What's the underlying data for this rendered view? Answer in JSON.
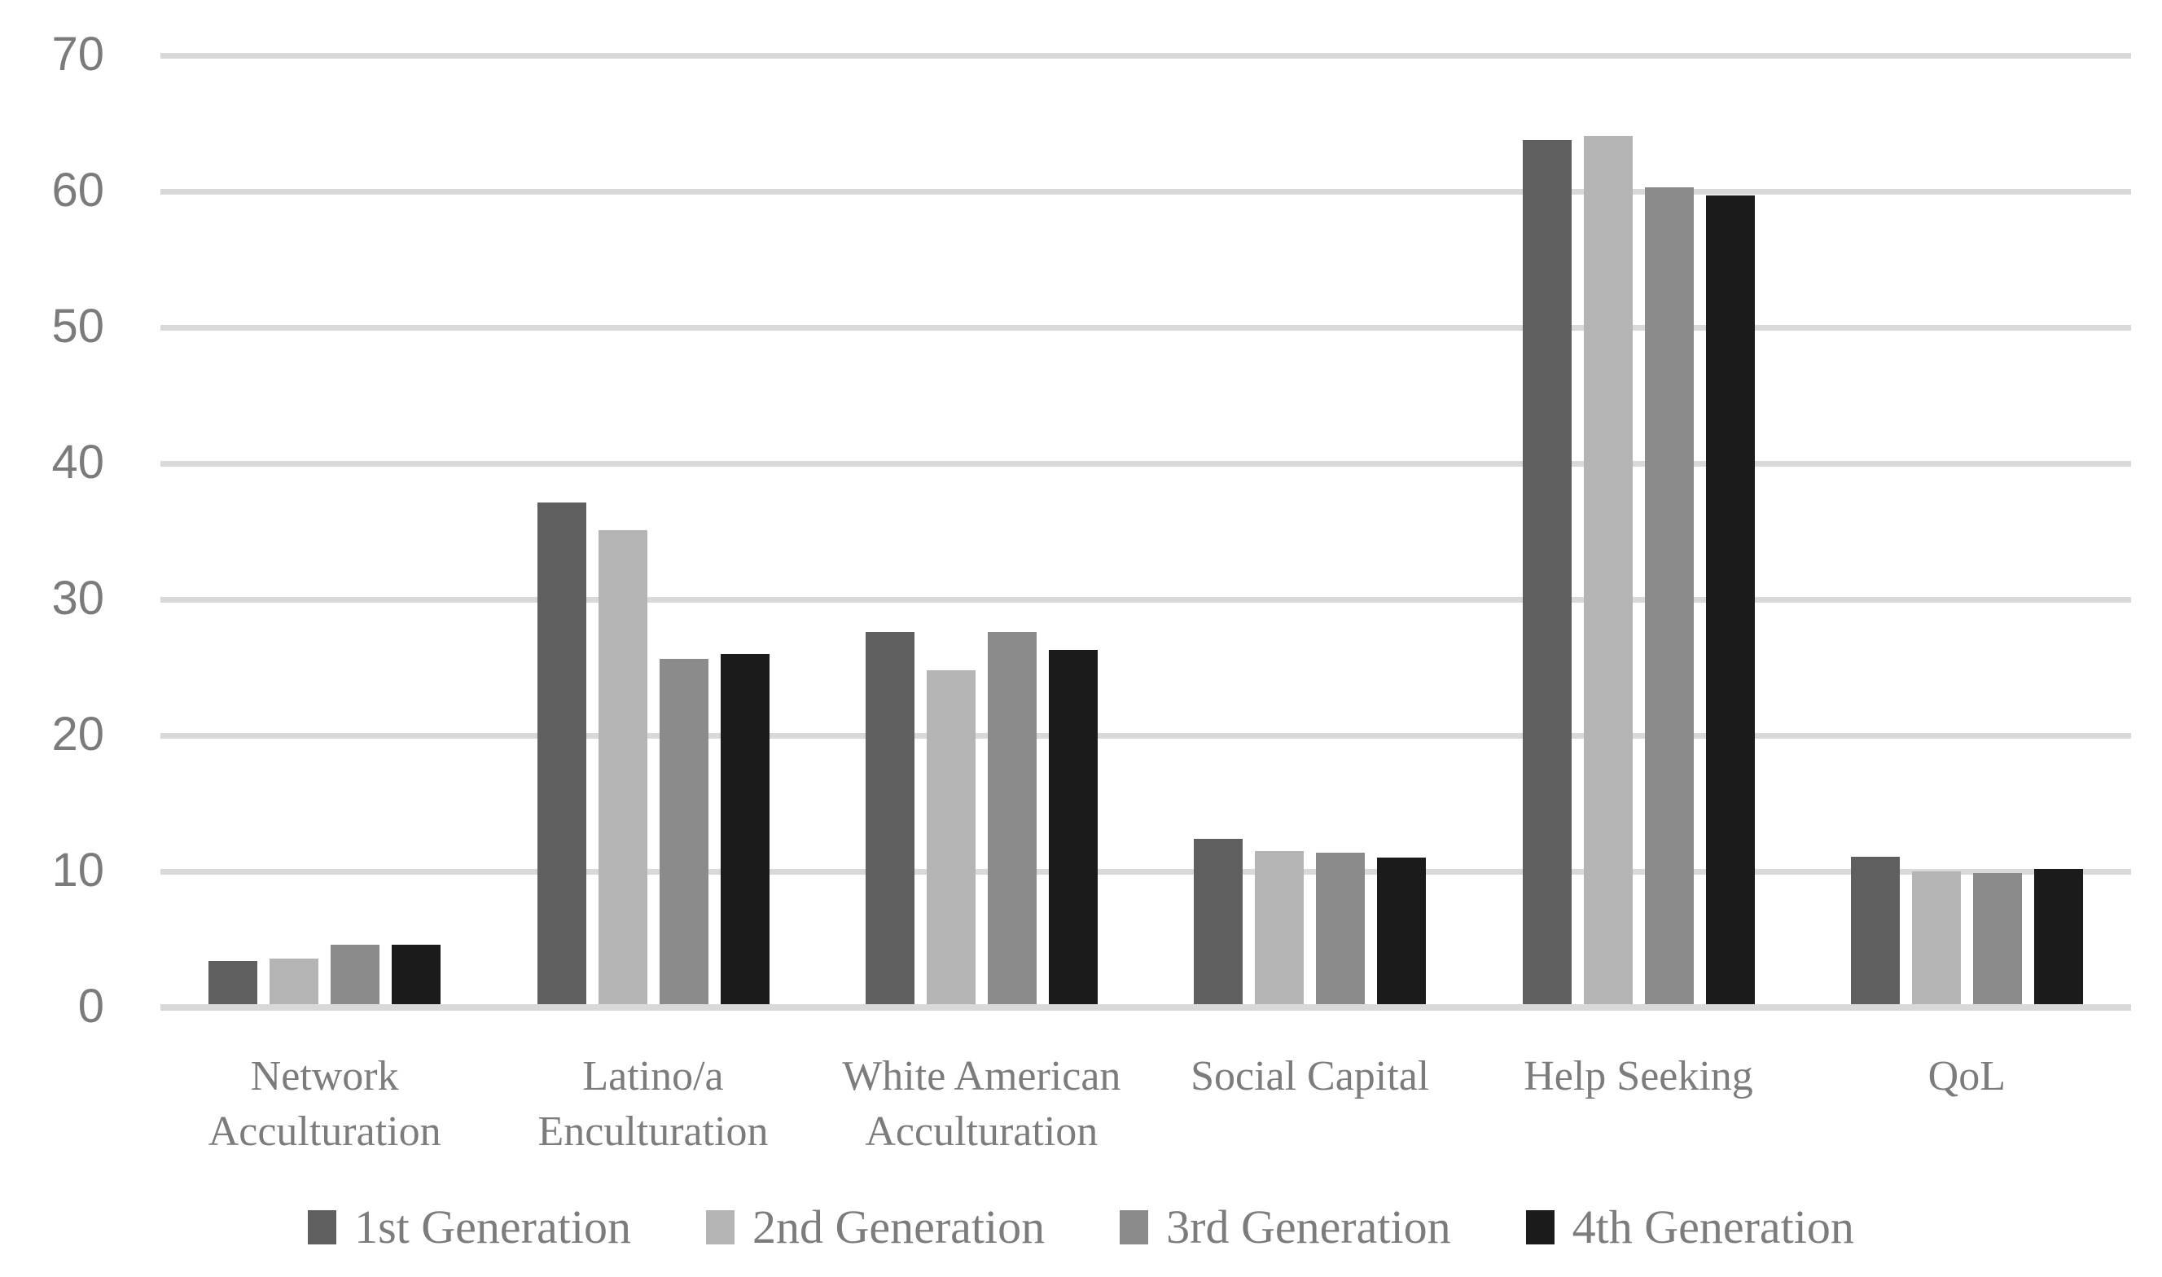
{
  "chart_data": {
    "type": "bar",
    "title": "",
    "xlabel": "",
    "ylabel": "",
    "categories": [
      "Network\nAcculturation",
      "Latino/a\nEnculturation",
      "White American\nAcculturation",
      "Social Capital",
      "Help Seeking",
      "QoL"
    ],
    "series": [
      {
        "name": "1st Generation",
        "color": "#5f5f5f",
        "values": [
          3.4,
          37.1,
          27.6,
          12.4,
          63.8,
          11.1
        ]
      },
      {
        "name": "2nd Generation",
        "color": "#b4b4b4",
        "values": [
          3.6,
          35.1,
          24.8,
          11.5,
          64.1,
          10.0
        ]
      },
      {
        "name": "3rd Generation",
        "color": "#8b8b8b",
        "values": [
          4.6,
          25.6,
          27.6,
          11.4,
          60.3,
          9.9
        ]
      },
      {
        "name": "4th Generation",
        "color": "#1b1b1b",
        "values": [
          4.6,
          26.0,
          26.3,
          11.0,
          59.7,
          10.2
        ]
      }
    ],
    "y_axis": {
      "min": 0,
      "max": 70,
      "step": 10,
      "tick_labels": [
        "0",
        "10",
        "20",
        "30",
        "40",
        "50",
        "60",
        "70"
      ]
    },
    "legend_position": "bottom",
    "grid": "horizontal",
    "colors": {
      "gridline": "#d9d9d9",
      "axis_line": "#d9d9d9",
      "label_text": "#7c7c7c",
      "tick_text": "#7b7b7b",
      "background": "#ffffff"
    }
  }
}
